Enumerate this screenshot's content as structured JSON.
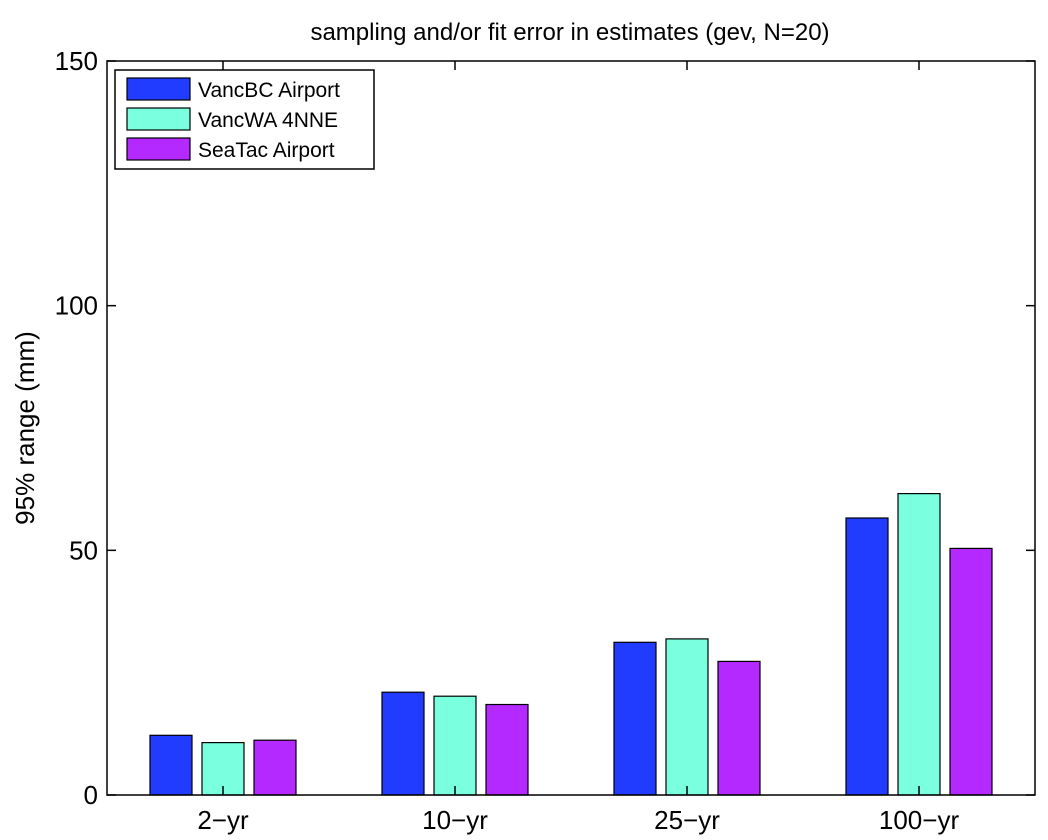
{
  "chart_data": {
    "type": "bar",
    "title": "sampling and/or fit error in estimates (gev, N=20)",
    "xlabel": "",
    "ylabel": "95% range (mm)",
    "categories": [
      "2−yr",
      "10−yr",
      "25−yr",
      "100−yr"
    ],
    "series": [
      {
        "name": "VancBC Airport",
        "color": "#213cff",
        "values": [
          12.2,
          21.0,
          31.2,
          56.6
        ]
      },
      {
        "name": "VancWA 4NNE",
        "color": "#7affdf",
        "values": [
          10.7,
          20.2,
          31.9,
          61.6
        ]
      },
      {
        "name": "SeaTac Airport",
        "color": "#b429ff",
        "values": [
          11.2,
          18.5,
          27.3,
          50.4
        ]
      }
    ],
    "ylim": [
      0,
      150
    ],
    "yticks": [
      0,
      50,
      100,
      150
    ],
    "grid": false,
    "legend_position": "top-left"
  }
}
